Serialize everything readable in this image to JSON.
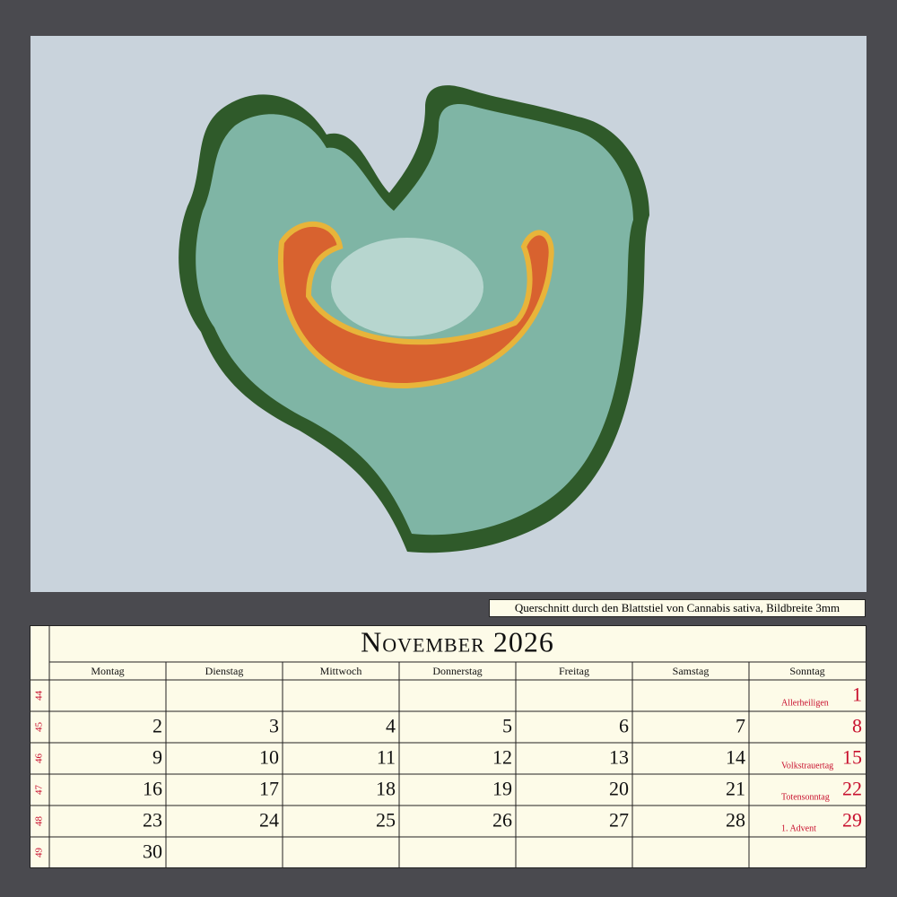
{
  "caption": "Querschnitt durch den Blattstiel von Cannabis sativa, Bildbreite 3mm",
  "calendar": {
    "title": "November 2026",
    "weekdays": [
      "Montag",
      "Dienstag",
      "Mittwoch",
      "Donnerstag",
      "Freitag",
      "Samstag",
      "Sonntag"
    ],
    "weeks": [
      {
        "number": "44",
        "days": [
          null,
          null,
          null,
          null,
          null,
          null,
          {
            "day": "1",
            "note": "Allerheiligen"
          }
        ]
      },
      {
        "number": "45",
        "days": [
          {
            "day": "2"
          },
          {
            "day": "3"
          },
          {
            "day": "4"
          },
          {
            "day": "5"
          },
          {
            "day": "6"
          },
          {
            "day": "7"
          },
          {
            "day": "8"
          }
        ]
      },
      {
        "number": "46",
        "days": [
          {
            "day": "9"
          },
          {
            "day": "10"
          },
          {
            "day": "11"
          },
          {
            "day": "12"
          },
          {
            "day": "13"
          },
          {
            "day": "14"
          },
          {
            "day": "15",
            "note": "Volkstrauertag"
          }
        ]
      },
      {
        "number": "47",
        "days": [
          {
            "day": "16"
          },
          {
            "day": "17"
          },
          {
            "day": "18"
          },
          {
            "day": "19"
          },
          {
            "day": "20"
          },
          {
            "day": "21"
          },
          {
            "day": "22",
            "note": "Totensonntag"
          }
        ]
      },
      {
        "number": "48",
        "days": [
          {
            "day": "23"
          },
          {
            "day": "24"
          },
          {
            "day": "25"
          },
          {
            "day": "26"
          },
          {
            "day": "27"
          },
          {
            "day": "28"
          },
          {
            "day": "29",
            "note": "1. Advent"
          }
        ]
      },
      {
        "number": "49",
        "days": [
          {
            "day": "30"
          },
          null,
          null,
          null,
          null,
          null,
          null
        ]
      }
    ]
  }
}
